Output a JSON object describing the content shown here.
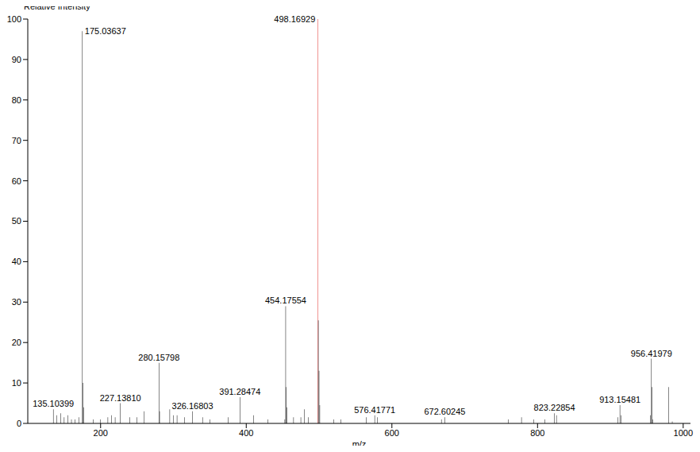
{
  "chart_data": {
    "type": "bar",
    "y_label": "Relative Intensity",
    "x_label": "m/z",
    "x": [
      135.10399,
      140,
      145,
      150,
      155,
      160,
      165,
      170,
      175.03637,
      176,
      177,
      190,
      200,
      210,
      215,
      220,
      227.1381,
      240,
      250,
      260,
      280.15798,
      281,
      295,
      300,
      305,
      315,
      326.16803,
      340,
      350,
      375,
      391.28474,
      410,
      430,
      453,
      454.17554,
      455,
      456,
      465,
      475,
      480,
      485,
      498.16929,
      499,
      500,
      501,
      520,
      530,
      565,
      576.41771,
      580,
      668,
      672.60245,
      760,
      778,
      795,
      810,
      823.22854,
      826,
      910,
      913.15481,
      915,
      955,
      956.41979,
      957,
      958,
      980,
      985
    ],
    "values": [
      3.5,
      2,
      2.5,
      1.5,
      2,
      1,
      1,
      1.5,
      97,
      10,
      4,
      1,
      1,
      1.5,
      2,
      1.5,
      5,
      1.5,
      1.5,
      3,
      15,
      3,
      3.5,
      2,
      2,
      1.5,
      3,
      1.5,
      1,
      1.5,
      6.5,
      2,
      1,
      1,
      29,
      9,
      4,
      1.5,
      1.5,
      3.5,
      1.5,
      100,
      25.5,
      13,
      4.5,
      1,
      1,
      1.5,
      2,
      1.5,
      1,
      1.5,
      1,
      1.5,
      1,
      1,
      2.5,
      2,
      1.5,
      4.5,
      2,
      2,
      16,
      9,
      1,
      9,
      0.5
    ],
    "colors": [
      "#000000",
      "#000000",
      "#000000",
      "#000000",
      "#000000",
      "#000000",
      "#000000",
      "#000000",
      "#000000",
      "#000000",
      "#000000",
      "#000000",
      "#000000",
      "#000000",
      "#000000",
      "#000000",
      "#000000",
      "#000000",
      "#000000",
      "#000000",
      "#000000",
      "#000000",
      "#000000",
      "#000000",
      "#000000",
      "#000000",
      "#000000",
      "#000000",
      "#000000",
      "#000000",
      "#000000",
      "#000000",
      "#000000",
      "#000000",
      "#000000",
      "#000000",
      "#000000",
      "#000000",
      "#000000",
      "#000000",
      "#000000",
      "#e0201f",
      "#000000",
      "#000000",
      "#000000",
      "#000000",
      "#000000",
      "#000000",
      "#000000",
      "#000000",
      "#000000",
      "#000000",
      "#000000",
      "#000000",
      "#000000",
      "#000000",
      "#000000",
      "#000000",
      "#000000",
      "#000000",
      "#000000",
      "#000000",
      "#000000",
      "#000000",
      "#000000",
      "#000000",
      "#000000"
    ],
    "annotations": [
      {
        "x": 175.03637,
        "y": 97,
        "text": "175.03637"
      },
      {
        "x": 498.16929,
        "y": 100,
        "text": "498.16929"
      },
      {
        "x": 454.17554,
        "y": 29,
        "text": "454.17554"
      },
      {
        "x": 280.15798,
        "y": 15,
        "text": "280.15798"
      },
      {
        "x": 956.41979,
        "y": 16,
        "text": "956.41979"
      },
      {
        "x": 135.10399,
        "y": 3.5,
        "text": "135.10399"
      },
      {
        "x": 227.1381,
        "y": 5,
        "text": "227.13810"
      },
      {
        "x": 326.16803,
        "y": 3,
        "text": "326.16803"
      },
      {
        "x": 391.28474,
        "y": 6.5,
        "text": "391.28474"
      },
      {
        "x": 576.41771,
        "y": 2,
        "text": "576.41771"
      },
      {
        "x": 672.60245,
        "y": 1.5,
        "text": "672.60245"
      },
      {
        "x": 823.22854,
        "y": 2.5,
        "text": "823.22854"
      },
      {
        "x": 913.15481,
        "y": 4.5,
        "text": "913.15481"
      }
    ],
    "xlim": [
      100,
      1010
    ],
    "xticks": [
      200,
      400,
      600,
      800,
      1000
    ],
    "ylim": [
      0,
      100
    ],
    "yticks": [
      0,
      10,
      20,
      30,
      40,
      50,
      60,
      70,
      80,
      90,
      100
    ]
  }
}
